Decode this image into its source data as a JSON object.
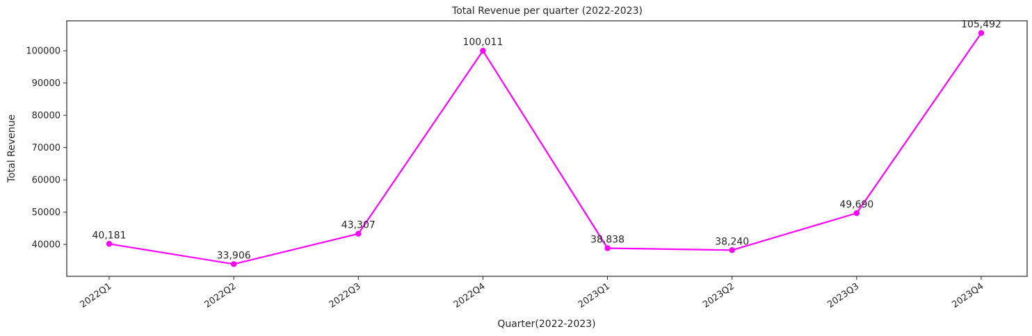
{
  "chart_data": {
    "type": "line",
    "title": "Total Revenue per quarter (2022-2023)",
    "xlabel": "Quarter(2022-2023)",
    "ylabel": "Total Revenue",
    "categories": [
      "2022Q1",
      "2022Q2",
      "2022Q3",
      "2022Q4",
      "2023Q1",
      "2023Q2",
      "2023Q3",
      "2023Q4"
    ],
    "values": [
      40181,
      33906,
      43307,
      100011,
      38838,
      38240,
      49690,
      105492
    ],
    "data_labels": [
      "40,181",
      "33,906",
      "43,307",
      "100,011",
      "38,838",
      "38,240",
      "49,690",
      "105,492"
    ],
    "yticks": [
      40000,
      50000,
      60000,
      70000,
      80000,
      90000,
      100000
    ],
    "ylim": [
      30127,
      109271
    ],
    "grid": false,
    "line_color": "#ff00ff",
    "marker_color": "#ff00ff"
  }
}
